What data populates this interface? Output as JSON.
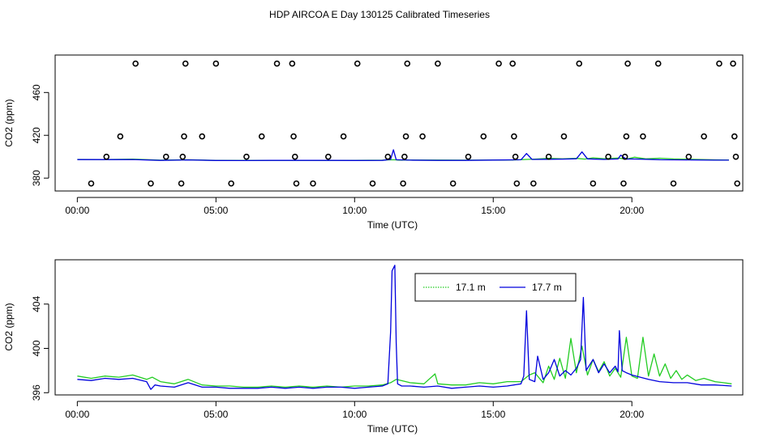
{
  "title": "HDP AIRCOA E  Day 130125  Calibrated Timeseries",
  "colors": {
    "green": "#22cc22",
    "blue": "#0000dd",
    "teal": "#119999",
    "axis": "#000000"
  },
  "chart_data": [
    {
      "type": "scatter+line",
      "xlabel": "Time (UTC)",
      "ylabel": "CO2 (ppm)",
      "xlim": [
        -0.8,
        24.0
      ],
      "ylim": [
        368,
        495
      ],
      "x_ticks": [
        0,
        5,
        10,
        15,
        20
      ],
      "x_tick_labels": [
        "00:00",
        "05:00",
        "10:00",
        "15:00",
        "20:00"
      ],
      "y_ticks": [
        380,
        420,
        460
      ],
      "y_tick_labels": [
        "380",
        "420",
        "460"
      ],
      "grid": false,
      "calibration_points": [
        {
          "x": 0.5,
          "y": 375
        },
        {
          "x": 1.05,
          "y": 400
        },
        {
          "x": 1.55,
          "y": 419
        },
        {
          "x": 2.1,
          "y": 487
        },
        {
          "x": 2.65,
          "y": 375
        },
        {
          "x": 3.2,
          "y": 400
        },
        {
          "x": 3.75,
          "y": 375
        },
        {
          "x": 3.8,
          "y": 400
        },
        {
          "x": 3.85,
          "y": 419
        },
        {
          "x": 3.9,
          "y": 487
        },
        {
          "x": 4.5,
          "y": 419
        },
        {
          "x": 5.0,
          "y": 487
        },
        {
          "x": 5.55,
          "y": 375
        },
        {
          "x": 6.1,
          "y": 400
        },
        {
          "x": 6.65,
          "y": 419
        },
        {
          "x": 7.2,
          "y": 487
        },
        {
          "x": 7.75,
          "y": 487
        },
        {
          "x": 7.8,
          "y": 419
        },
        {
          "x": 7.85,
          "y": 400
        },
        {
          "x": 7.9,
          "y": 375
        },
        {
          "x": 8.5,
          "y": 375
        },
        {
          "x": 9.05,
          "y": 400
        },
        {
          "x": 9.6,
          "y": 419
        },
        {
          "x": 10.1,
          "y": 487
        },
        {
          "x": 10.65,
          "y": 375
        },
        {
          "x": 11.2,
          "y": 400
        },
        {
          "x": 11.75,
          "y": 375
        },
        {
          "x": 11.8,
          "y": 400
        },
        {
          "x": 11.85,
          "y": 419
        },
        {
          "x": 11.9,
          "y": 487
        },
        {
          "x": 12.45,
          "y": 419
        },
        {
          "x": 13.0,
          "y": 487
        },
        {
          "x": 13.55,
          "y": 375
        },
        {
          "x": 14.1,
          "y": 400
        },
        {
          "x": 14.65,
          "y": 419
        },
        {
          "x": 15.2,
          "y": 487
        },
        {
          "x": 15.7,
          "y": 487
        },
        {
          "x": 15.75,
          "y": 419
        },
        {
          "x": 15.8,
          "y": 400
        },
        {
          "x": 15.85,
          "y": 375
        },
        {
          "x": 16.45,
          "y": 375
        },
        {
          "x": 17.0,
          "y": 400
        },
        {
          "x": 17.55,
          "y": 419
        },
        {
          "x": 18.1,
          "y": 487
        },
        {
          "x": 18.6,
          "y": 375
        },
        {
          "x": 19.15,
          "y": 400
        },
        {
          "x": 19.7,
          "y": 375
        },
        {
          "x": 19.75,
          "y": 400
        },
        {
          "x": 19.8,
          "y": 419
        },
        {
          "x": 19.85,
          "y": 487
        },
        {
          "x": 20.4,
          "y": 419
        },
        {
          "x": 20.95,
          "y": 487
        },
        {
          "x": 21.5,
          "y": 375
        },
        {
          "x": 22.05,
          "y": 400
        },
        {
          "x": 22.6,
          "y": 419
        },
        {
          "x": 23.15,
          "y": 487
        },
        {
          "x": 23.65,
          "y": 487
        },
        {
          "x": 23.7,
          "y": 419
        },
        {
          "x": 23.75,
          "y": 400
        },
        {
          "x": 23.8,
          "y": 375
        }
      ],
      "series": [
        {
          "color": "green",
          "x": [
            0,
            1,
            2,
            3,
            4,
            5,
            6,
            7,
            8,
            9,
            10,
            11,
            11.4,
            11.6,
            12,
            13,
            14,
            15,
            15.8,
            16.2,
            16.5,
            17,
            17.5,
            18,
            18.3,
            18.6,
            19,
            19.5,
            19.8,
            20.1,
            20.5,
            21,
            21.5,
            22,
            22.5,
            23,
            23.5
          ],
          "y": [
            397.5,
            397.4,
            397.7,
            396.8,
            397.2,
            396.6,
            396.5,
            396.6,
            396.6,
            396.5,
            396.6,
            396.8,
            397.2,
            396.9,
            396.9,
            396.9,
            396.8,
            396.9,
            397.0,
            397.5,
            397.8,
            398.5,
            398.0,
            398.5,
            397.8,
            399.0,
            398.2,
            398.8,
            397.8,
            399.5,
            398.0,
            398.6,
            397.9,
            397.6,
            397.3,
            397.1,
            396.9
          ]
        },
        {
          "color": "blue",
          "x": [
            0,
            1,
            2,
            3,
            4,
            5,
            6,
            7,
            8,
            9,
            10,
            11,
            11.3,
            11.4,
            11.5,
            12,
            13,
            14,
            15,
            16,
            16.2,
            16.4,
            17,
            17.5,
            18,
            18.2,
            18.4,
            19,
            19.5,
            19.6,
            19.8,
            20,
            21,
            22,
            23,
            23.5
          ],
          "y": [
            397.3,
            397.3,
            397.4,
            396.6,
            397.0,
            396.5,
            396.4,
            396.6,
            396.6,
            396.6,
            396.5,
            396.6,
            397.5,
            406.5,
            397.2,
            396.8,
            396.6,
            396.6,
            396.9,
            397.2,
            403.0,
            397.5,
            397.6,
            397.8,
            398.1,
            404.5,
            398.0,
            397.5,
            397.9,
            401.5,
            397.8,
            397.9,
            397.2,
            397.0,
            396.8,
            396.8
          ]
        }
      ]
    },
    {
      "type": "line",
      "xlabel": "Time (UTC)",
      "ylabel": "CO2 (ppm)",
      "xlim": [
        -0.8,
        24.0
      ],
      "ylim": [
        395.8,
        408.0
      ],
      "x_ticks": [
        0,
        5,
        10,
        15,
        20
      ],
      "x_tick_labels": [
        "00:00",
        "05:00",
        "10:00",
        "15:00",
        "20:00"
      ],
      "y_ticks": [
        396,
        400,
        404
      ],
      "y_tick_labels": [
        "396",
        "400",
        "404"
      ],
      "grid": false,
      "legend_position": "top-center",
      "series": [
        {
          "name": "17.1 m",
          "color": "green",
          "x": [
            0,
            0.5,
            1,
            1.5,
            2,
            2.5,
            2.7,
            3,
            3.5,
            4,
            4.5,
            5,
            5.5,
            6,
            6.5,
            7,
            7.5,
            8,
            8.5,
            9,
            9.5,
            10,
            10.5,
            11,
            11.3,
            11.5,
            12,
            12.5,
            12.9,
            13,
            13.5,
            14,
            14.5,
            15,
            15.5,
            16,
            16.3,
            16.5,
            16.8,
            17,
            17.2,
            17.4,
            17.6,
            17.8,
            18,
            18.2,
            18.4,
            18.6,
            18.8,
            19,
            19.2,
            19.4,
            19.6,
            19.8,
            20,
            20.2,
            20.4,
            20.6,
            20.8,
            21,
            21.2,
            21.4,
            21.6,
            21.8,
            22,
            22.3,
            22.6,
            23,
            23.3,
            23.6
          ],
          "y": [
            397.5,
            397.3,
            397.5,
            397.4,
            397.6,
            397.2,
            397.4,
            397.0,
            396.8,
            397.2,
            396.7,
            396.6,
            396.6,
            396.5,
            396.5,
            396.6,
            396.5,
            396.6,
            396.5,
            396.6,
            396.5,
            396.6,
            396.6,
            396.7,
            396.9,
            397.2,
            396.9,
            396.8,
            397.7,
            396.8,
            396.7,
            396.7,
            396.9,
            396.8,
            397.0,
            397.0,
            397.6,
            397.8,
            396.9,
            398.4,
            397.2,
            399.1,
            397.3,
            400.9,
            397.8,
            400.2,
            397.6,
            399.0,
            397.9,
            398.8,
            397.5,
            398.2,
            397.4,
            401.0,
            397.5,
            397.3,
            401.0,
            397.5,
            399.5,
            397.5,
            398.6,
            397.3,
            398.0,
            397.2,
            397.6,
            397.1,
            397.3,
            397.0,
            396.9,
            396.8
          ]
        },
        {
          "name": "17.7 m",
          "color": "blue",
          "x": [
            0,
            0.5,
            1,
            1.5,
            2,
            2.5,
            2.65,
            2.8,
            3,
            3.5,
            4,
            4.5,
            5,
            5.5,
            6,
            6.5,
            7,
            7.5,
            8,
            8.5,
            9,
            9.5,
            10,
            10.5,
            11,
            11.2,
            11.3,
            11.35,
            11.45,
            11.5,
            11.55,
            11.7,
            12,
            12.5,
            13,
            13.5,
            14,
            14.5,
            15,
            15.5,
            16,
            16.1,
            16.2,
            16.3,
            16.5,
            16.6,
            16.8,
            17,
            17.2,
            17.4,
            17.6,
            17.8,
            18,
            18.15,
            18.25,
            18.35,
            18.6,
            18.8,
            19,
            19.2,
            19.4,
            19.5,
            19.55,
            19.65,
            19.8,
            20,
            20.3,
            20.6,
            21,
            21.5,
            22,
            22.5,
            23,
            23.6
          ],
          "y": [
            397.2,
            397.1,
            397.3,
            397.2,
            397.3,
            397.0,
            396.3,
            396.7,
            396.6,
            396.5,
            396.9,
            396.5,
            396.5,
            396.4,
            396.4,
            396.4,
            396.5,
            396.4,
            396.5,
            396.4,
            396.5,
            396.5,
            396.4,
            396.5,
            396.6,
            396.8,
            401.5,
            407.0,
            407.5,
            400.5,
            396.8,
            396.6,
            396.6,
            396.5,
            396.6,
            396.4,
            396.5,
            396.6,
            396.5,
            396.6,
            396.8,
            397.5,
            403.4,
            397.2,
            397.0,
            399.3,
            397.2,
            397.8,
            399.0,
            397.5,
            398.0,
            397.6,
            398.2,
            399.0,
            404.6,
            398.0,
            399.0,
            397.8,
            398.6,
            397.8,
            398.4,
            397.9,
            401.6,
            398.0,
            397.8,
            397.6,
            397.4,
            397.2,
            397.0,
            396.9,
            396.9,
            396.7,
            396.7,
            396.6
          ]
        }
      ]
    }
  ]
}
